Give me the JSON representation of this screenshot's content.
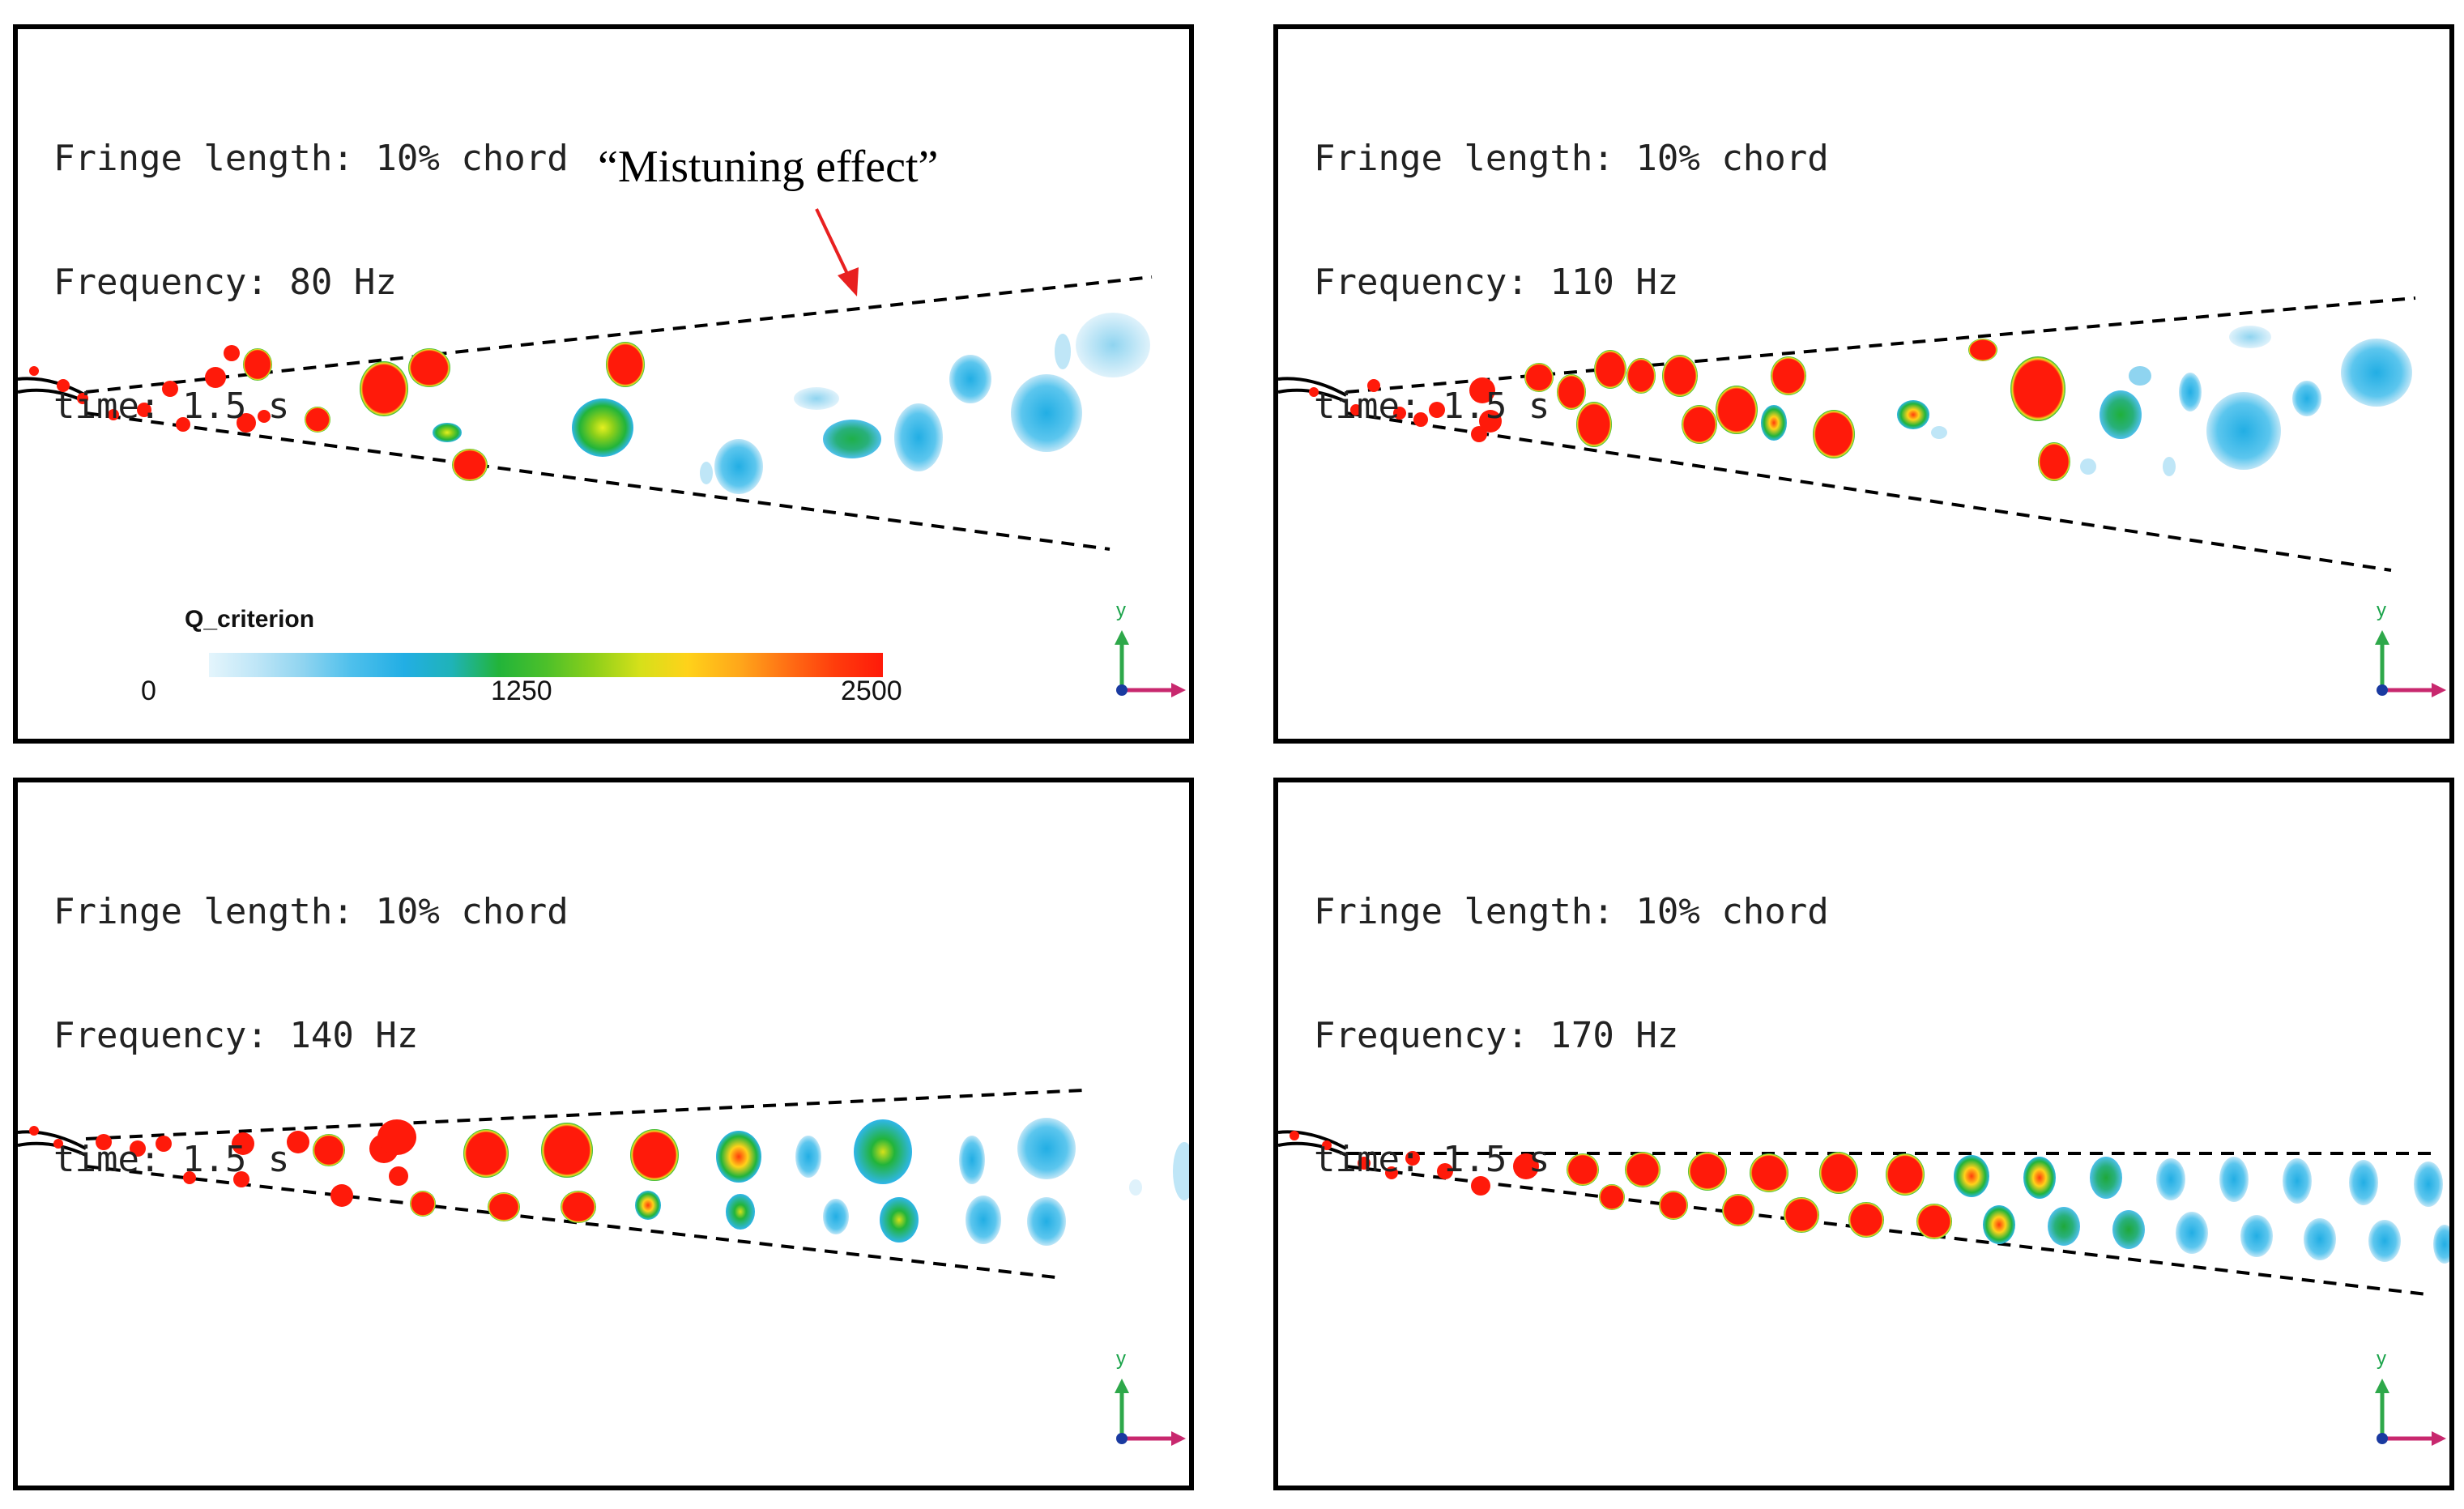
{
  "colors": {
    "high": "#ff1a0a",
    "mid": "#22b43a",
    "low": "#2fb6ea",
    "pale": "#bfe6f7",
    "frame": "#000000",
    "annotation_arrow": "#e82020",
    "axis_y": "#2ea84a",
    "axis_x": "#c8286e"
  },
  "panels": [
    {
      "fringe": "Fringe length: 10% chord",
      "frequency": "Frequency: 80 Hz",
      "time": "time: 1.5 s"
    },
    {
      "fringe": "Fringe length: 10% chord",
      "frequency": "Frequency: 110 Hz",
      "time": "time: 1.5 s"
    },
    {
      "fringe": "Fringe length: 10% chord",
      "frequency": "Frequency: 140 Hz",
      "time": "time: 1.5 s"
    },
    {
      "fringe": "Fringe length: 10% chord",
      "frequency": "Frequency: 170 Hz",
      "time": "time: 1.5 s"
    }
  ],
  "annotation": {
    "text": "“Mistuning effect”"
  },
  "colorbar": {
    "title": "Q_criterion",
    "tick_min": "0",
    "tick_mid": "1250",
    "tick_max": "2500",
    "range": [
      0,
      2500
    ],
    "stops": [
      "#e4f5fc",
      "#bfe6f7",
      "#8fd4f0",
      "#4fc0ec",
      "#22aee4",
      "#1fb3b8",
      "#22b43a",
      "#4cc02a",
      "#8ccf1a",
      "#d6e01a",
      "#ffd21a",
      "#ffa51a",
      "#ff6e14",
      "#ff3c0c",
      "#ff1a0a"
    ]
  },
  "axes_label": "y"
}
